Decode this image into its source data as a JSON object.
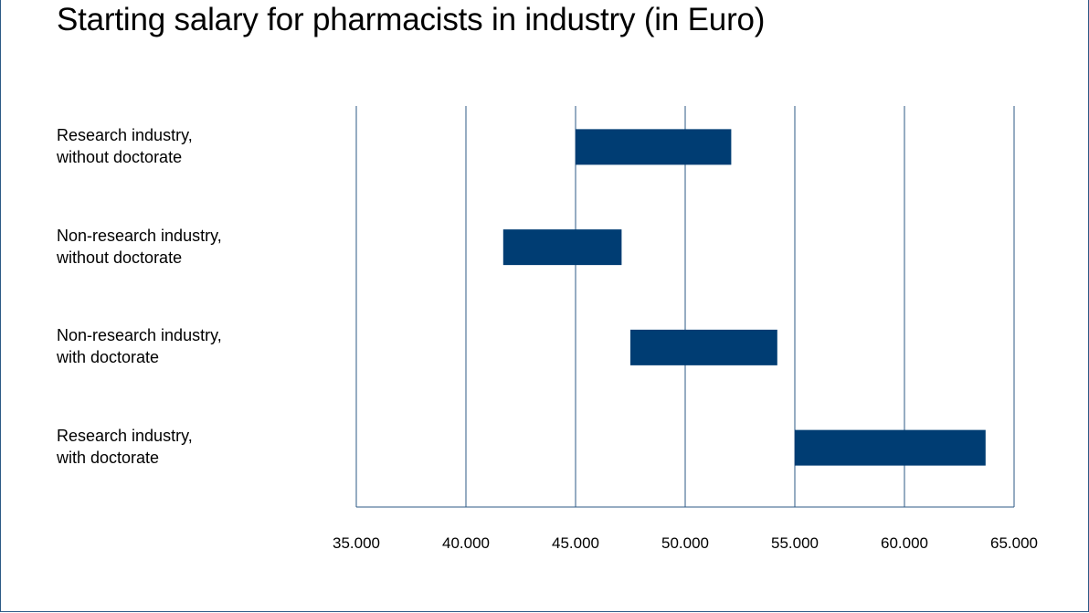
{
  "chart_data": {
    "type": "bar",
    "orientation": "horizontal-range",
    "title": "Starting salary for pharmacists in industry (in Euro)",
    "categories": [
      [
        "Research industry,",
        "without doctorate"
      ],
      [
        "Non-research industry,",
        "without doctorate"
      ],
      [
        "Non-research industry,",
        "with doctorate"
      ],
      [
        "Research industry,",
        "with doctorate"
      ]
    ],
    "ranges": [
      [
        45000,
        52100
      ],
      [
        41700,
        47100
      ],
      [
        47500,
        54200
      ],
      [
        55000,
        63700
      ]
    ],
    "xlim": [
      35000,
      65000
    ],
    "xticks": [
      35000,
      40000,
      45000,
      50000,
      55000,
      60000,
      65000
    ],
    "xtick_labels": [
      "35.000",
      "40.000",
      "45.000",
      "50.000",
      "55.000",
      "60.000",
      "65.000"
    ],
    "grid": true,
    "colors": {
      "bar": "#003d73",
      "grid": "#2c5a86"
    }
  }
}
